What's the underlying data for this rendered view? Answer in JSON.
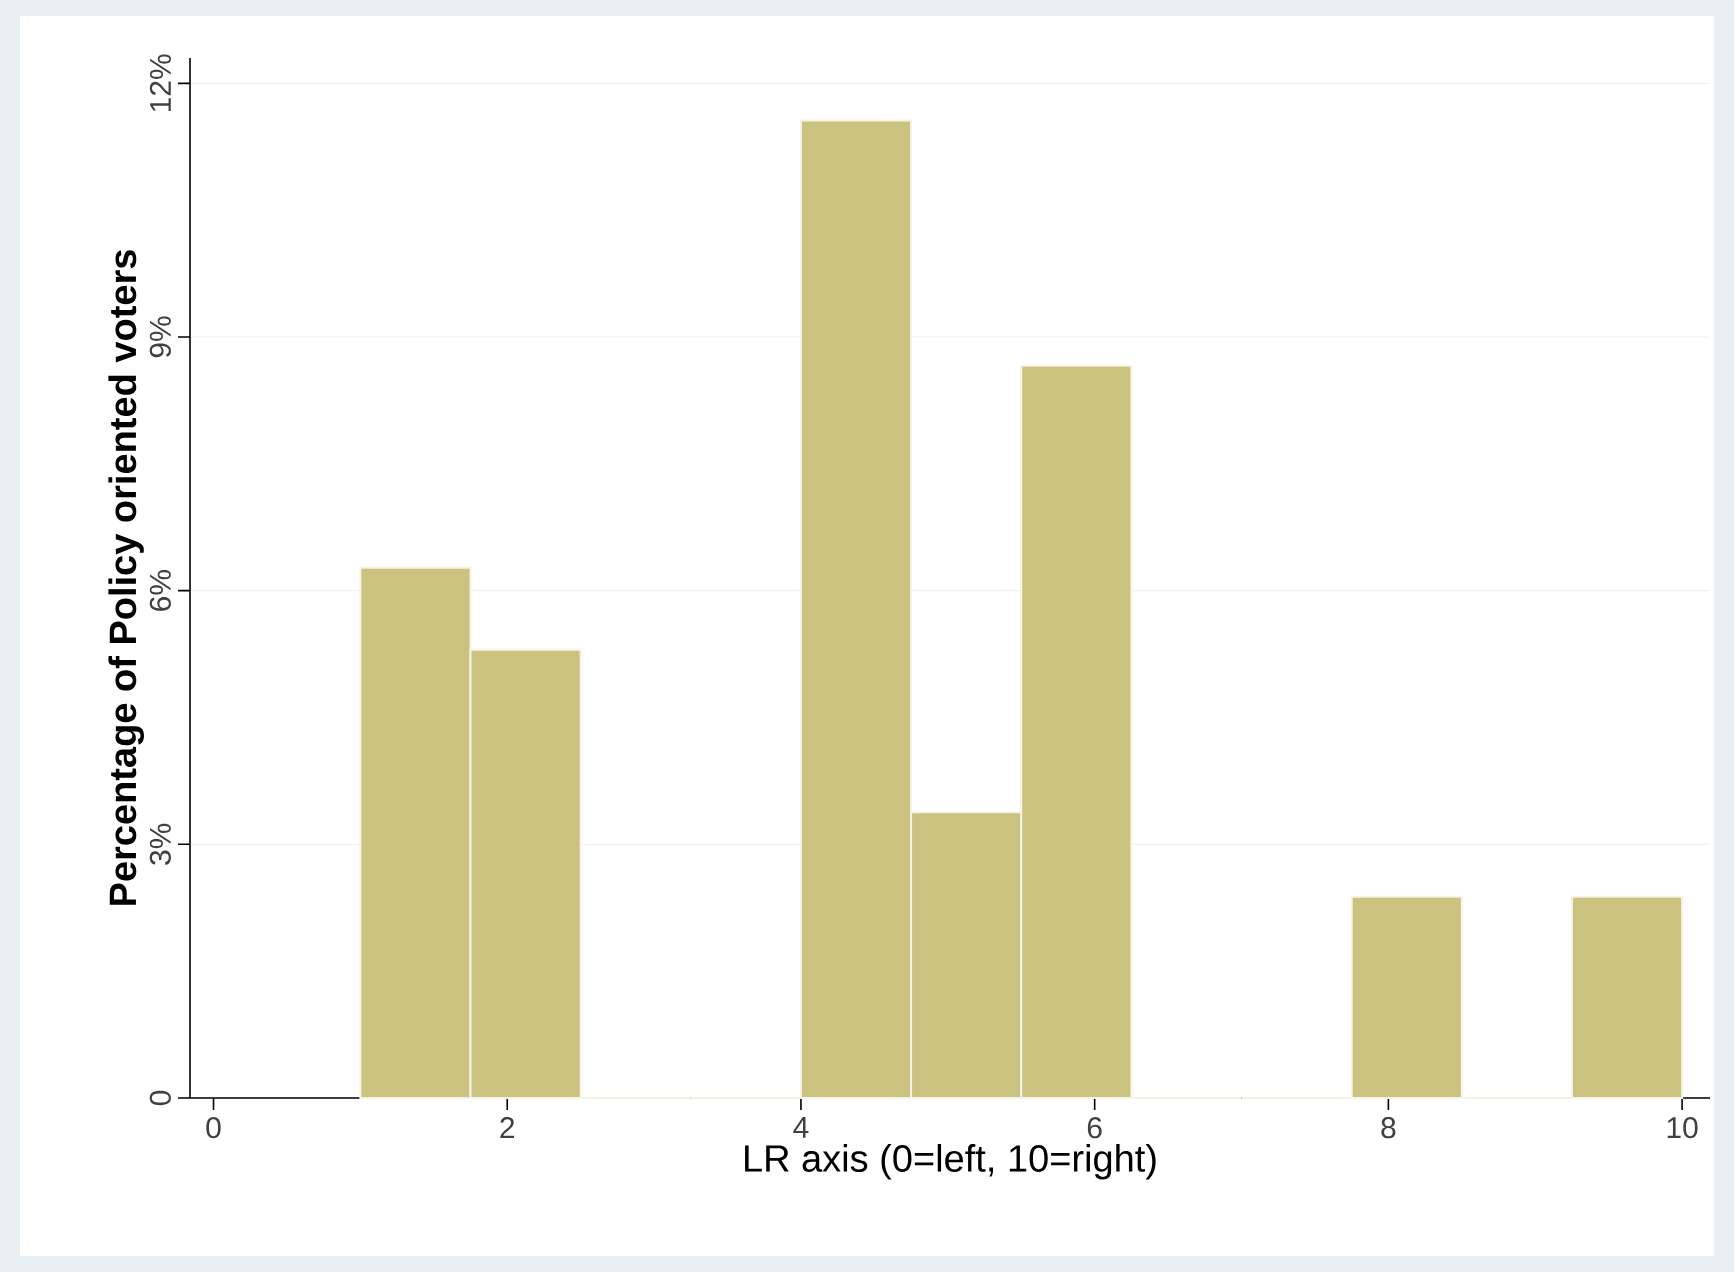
{
  "chart_data": {
    "type": "histogram",
    "xlabel": "LR axis (0=left, 10=right)",
    "ylabel": "Percentage of Policy oriented voters",
    "bins": [
      1,
      1.75,
      2.5,
      3.25,
      4,
      4.75,
      5.5,
      6.25,
      7,
      7.75,
      8.5,
      9.25,
      10
    ],
    "values": [
      6.27,
      5.3,
      0,
      0,
      11.56,
      3.38,
      8.66,
      0,
      0,
      2.38,
      0,
      2.38
    ],
    "color": "#cbc280",
    "xlim": [
      -0.16,
      10.19
    ],
    "ylim": [
      0,
      12.3
    ],
    "xticks": [
      0,
      2,
      4,
      6,
      8,
      10
    ],
    "yticks": [
      {
        "value": 0,
        "label": "0"
      },
      {
        "value": 3,
        "label": "3%"
      },
      {
        "value": 6,
        "label": "6%"
      },
      {
        "value": 9,
        "label": "9%"
      },
      {
        "value": 12,
        "label": "12%"
      }
    ],
    "grid": "y"
  }
}
